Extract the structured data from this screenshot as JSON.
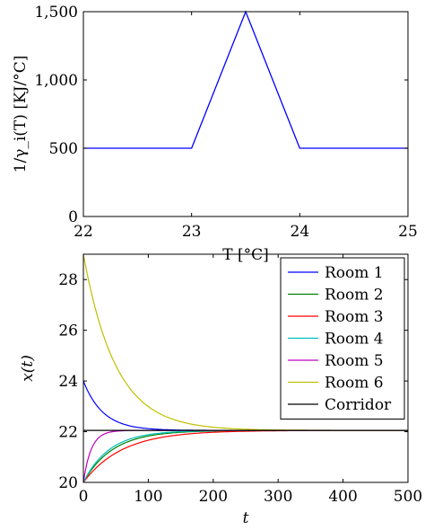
{
  "chart_data": [
    {
      "type": "line",
      "title": "",
      "xlabel": "T [°C]",
      "ylabel": "1/γ_i(T) [KJ/°C]",
      "xlim": [
        22,
        25
      ],
      "ylim": [
        0,
        1500
      ],
      "grid": false,
      "x_ticks": [
        "22",
        "23",
        "24",
        "25"
      ],
      "y_ticks": [
        "0",
        "500",
        "1,000",
        "1,500"
      ],
      "series": [
        {
          "color": "#0000ff",
          "x": [
            22,
            23,
            23.5,
            24,
            25
          ],
          "y": [
            500,
            500,
            1500,
            500,
            500
          ]
        }
      ]
    },
    {
      "type": "line",
      "title": "",
      "xlabel": "t",
      "ylabel": "x(t)",
      "xlim": [
        0,
        500
      ],
      "ylim": [
        20,
        29
      ],
      "grid": false,
      "legend_position": "top-right",
      "x_ticks": [
        "0",
        "100",
        "200",
        "300",
        "400",
        "500"
      ],
      "y_ticks": [
        "20",
        "22",
        "24",
        "26",
        "28"
      ],
      "steady_state": 22.05,
      "series": [
        {
          "name": "Room 1",
          "color": "#0000ff",
          "initial": 24,
          "tau": 30
        },
        {
          "name": "Room 2",
          "color": "#008000",
          "initial": 20,
          "tau": 45
        },
        {
          "name": "Room 3",
          "color": "#ff0000",
          "initial": 20,
          "tau": 60
        },
        {
          "name": "Room 4",
          "color": "#00bfbf",
          "initial": 20,
          "tau": 40
        },
        {
          "name": "Room 5",
          "color": "#bf00bf",
          "initial": 20,
          "tau": 12
        },
        {
          "name": "Room 6",
          "color": "#bfbf00",
          "initial": 29,
          "tau": 50
        },
        {
          "name": "Corridor",
          "color": "#000000",
          "initial": 22.05,
          "tau": 1
        }
      ]
    }
  ]
}
